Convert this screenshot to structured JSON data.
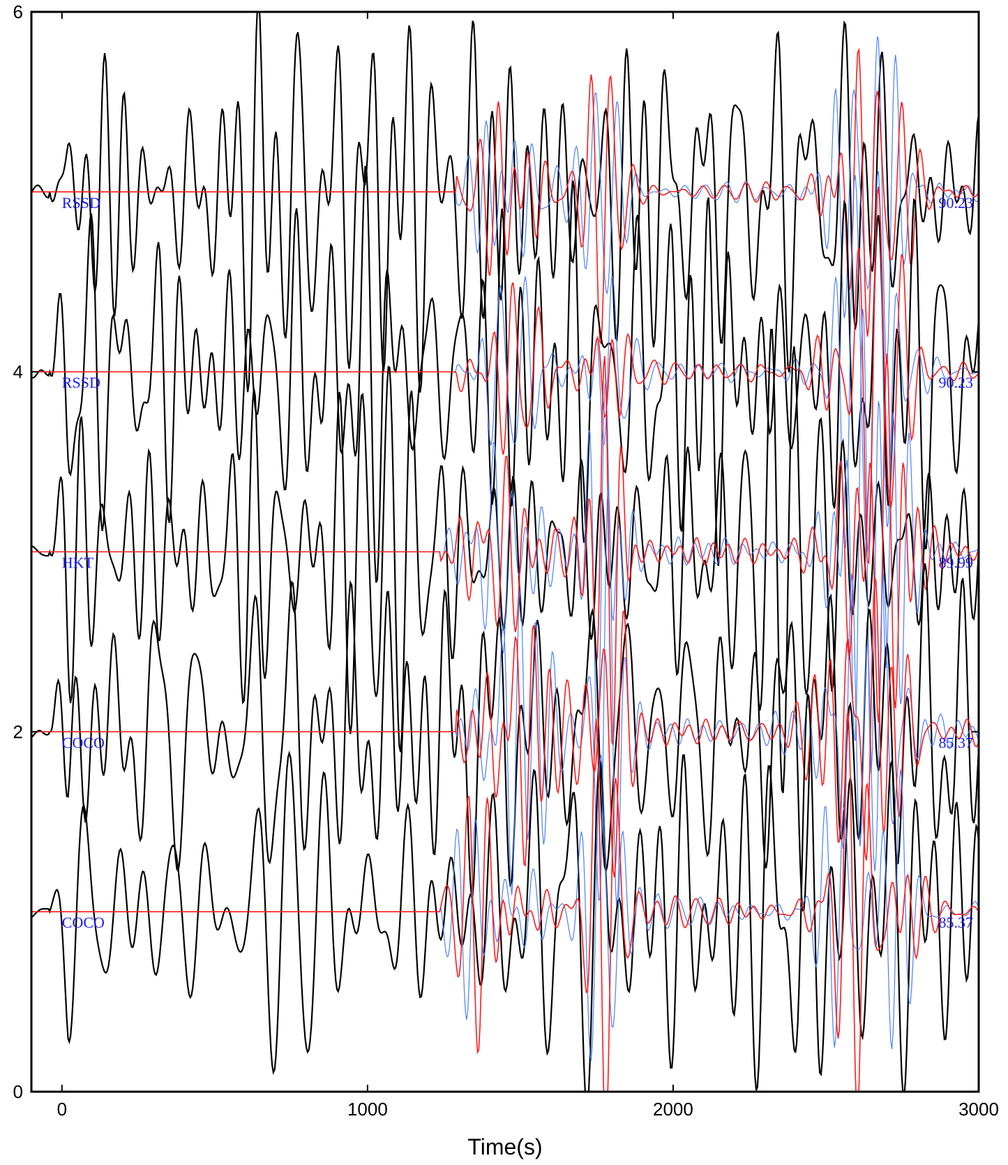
{
  "chart_data": {
    "type": "line",
    "title": "",
    "xlabel": "Time(s)",
    "ylabel": "",
    "xlim": [
      -100,
      3000
    ],
    "ylim": [
      0,
      6
    ],
    "xticks": [
      0,
      1000,
      2000,
      3000
    ],
    "yticks": [
      0,
      2,
      4,
      6
    ],
    "grid": false,
    "legend": "none",
    "colors": {
      "data": "#000000",
      "synthetic_a": "#ff1a1a",
      "synthetic_b": "#4a7fff",
      "labels": "#1a1aff"
    },
    "traces": [
      {
        "station": "RSSD",
        "distance": "90.23",
        "baseline": 5,
        "onset": 1350
      },
      {
        "station": "RSSD",
        "distance": "90.23",
        "baseline": 4,
        "onset": 1350
      },
      {
        "station": "HKT",
        "distance": "89.99",
        "baseline": 3,
        "onset": 1300
      },
      {
        "station": "COCO",
        "distance": "85.37",
        "baseline": 2,
        "onset": 1350
      },
      {
        "station": "COCO",
        "distance": "85.37",
        "baseline": 1,
        "onset": 1300
      }
    ]
  }
}
